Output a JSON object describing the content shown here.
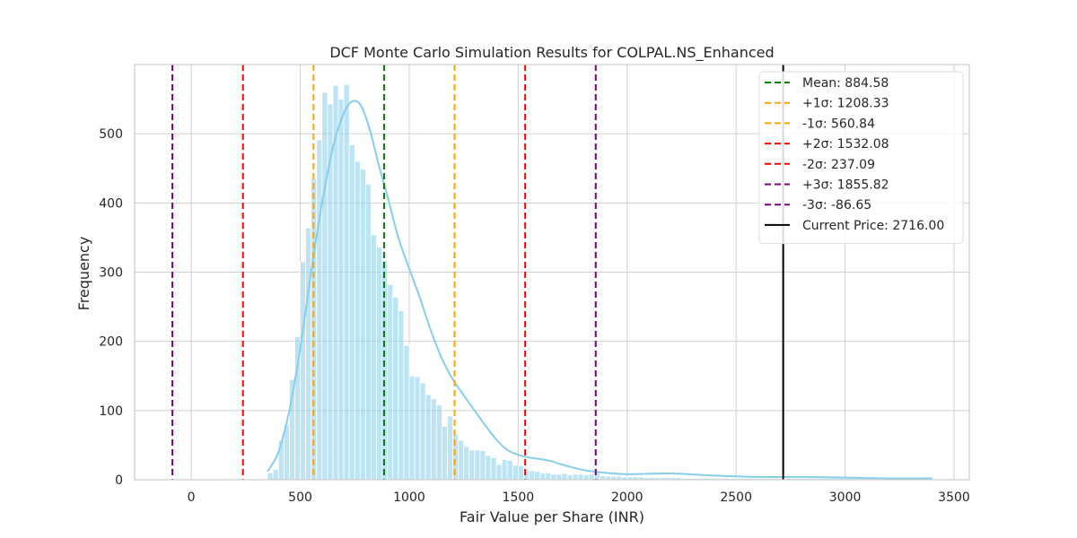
{
  "chart_data": {
    "type": "histogram",
    "title": "DCF Monte Carlo Simulation Results for COLPAL.NS_Enhanced",
    "xlabel": "Fair Value per Share (INR)",
    "ylabel": "Frequency",
    "xlim": [
      -260,
      3570
    ],
    "ylim": [
      0,
      600
    ],
    "xticks": [
      0,
      500,
      1000,
      1500,
      2000,
      2500,
      3000,
      3500
    ],
    "yticks": [
      0,
      100,
      200,
      300,
      400,
      500
    ],
    "grid": true,
    "bar_color": "#87CEEB",
    "kde_color": "#87CEEB",
    "bins": {
      "start": 350,
      "width": 25,
      "counts": [
        10,
        15,
        57,
        79,
        145,
        207,
        315,
        364,
        435,
        491,
        560,
        543,
        570,
        550,
        571,
        484,
        460,
        449,
        427,
        354,
        336,
        317,
        282,
        264,
        244,
        194,
        150,
        149,
        140,
        123,
        117,
        108,
        77,
        92,
        65,
        57,
        48,
        43,
        43,
        42,
        35,
        32,
        22,
        29,
        28,
        21,
        20,
        15,
        13,
        12,
        10,
        10,
        8,
        8,
        9,
        7,
        8,
        8,
        7,
        8,
        12,
        6,
        5,
        5,
        5,
        4,
        4,
        4,
        4,
        3,
        3,
        3,
        3,
        3,
        3,
        3,
        2,
        2,
        2,
        2,
        2,
        2,
        2,
        2,
        2,
        2,
        2,
        2,
        2,
        2,
        2,
        2,
        2,
        2,
        2,
        2,
        2,
        2,
        2,
        2,
        2,
        2,
        2,
        2,
        2,
        2,
        2,
        2,
        2,
        2,
        2,
        2,
        1,
        1,
        1,
        1,
        1,
        1,
        1,
        1,
        1,
        1
      ]
    },
    "kde": {
      "x": [
        350,
        400,
        450,
        500,
        550,
        600,
        650,
        700,
        740,
        780,
        820,
        860,
        900,
        950,
        1000,
        1050,
        1100,
        1150,
        1200,
        1250,
        1300,
        1350,
        1400,
        1450,
        1500,
        1550,
        1600,
        1650,
        1700,
        1800,
        1900,
        2000,
        2200,
        2400,
        2600,
        2800,
        3000,
        3200,
        3400
      ],
      "y": [
        12,
        40,
        100,
        190,
        300,
        400,
        480,
        530,
        547,
        540,
        505,
        455,
        410,
        350,
        305,
        262,
        215,
        175,
        145,
        122,
        100,
        78,
        58,
        43,
        36,
        32,
        30,
        27,
        22,
        14,
        10,
        8,
        9,
        6,
        4,
        4,
        3,
        2,
        2
      ]
    },
    "reference_lines": [
      {
        "label": "Mean: 884.58",
        "value": 884.58,
        "color": "#008000",
        "style": "dashed"
      },
      {
        "label": "+1σ: 1208.33",
        "value": 1208.33,
        "color": "#FFA500",
        "style": "dashed"
      },
      {
        "label": "-1σ: 560.84",
        "value": 560.84,
        "color": "#FFA500",
        "style": "dashed"
      },
      {
        "label": "+2σ: 1532.08",
        "value": 1532.08,
        "color": "#FF0000",
        "style": "dashed"
      },
      {
        "label": "-2σ: 237.09",
        "value": 237.09,
        "color": "#FF0000",
        "style": "dashed"
      },
      {
        "label": "+3σ: 1855.82",
        "value": 1855.82,
        "color": "#800080",
        "style": "dashed"
      },
      {
        "label": "-3σ: -86.65",
        "value": -86.65,
        "color": "#800080",
        "style": "dashed"
      },
      {
        "label": "Current Price: 2716.00",
        "value": 2716.0,
        "color": "#000000",
        "style": "solid"
      }
    ],
    "legend_position": "top-right"
  }
}
